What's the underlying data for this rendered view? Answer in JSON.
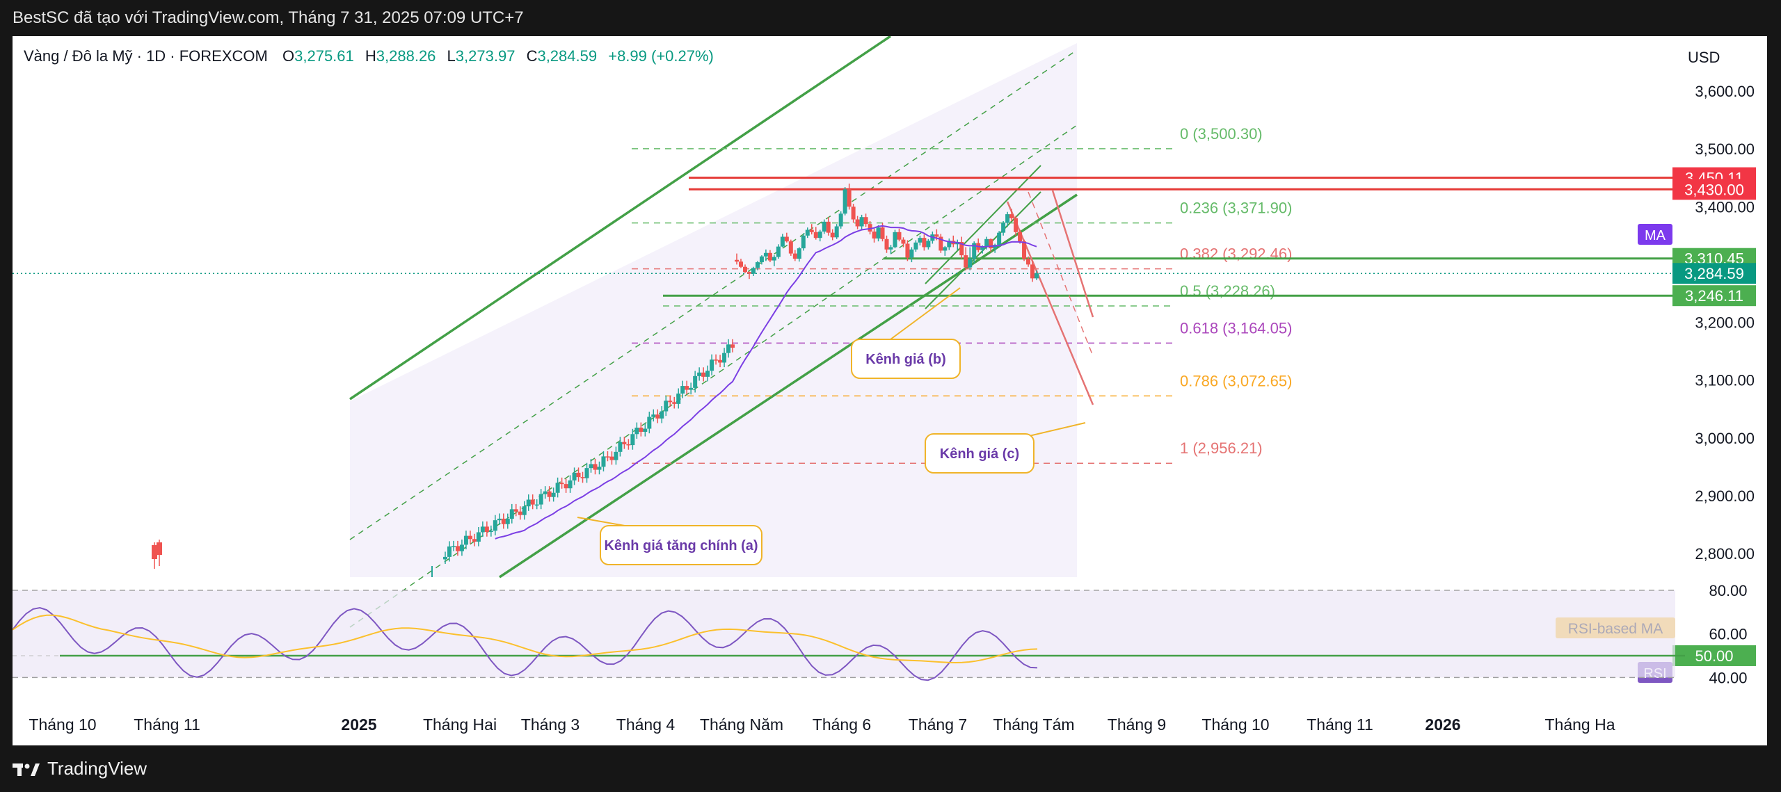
{
  "header": {
    "credit": "BestSC đã tạo với TradingView.com, Tháng 7 31, 2025 07:09 UTC+7"
  },
  "footer": {
    "brand": "TradingView"
  },
  "colors": {
    "up": "#26a69a",
    "down": "#ef5350",
    "ma": "#7b3fe4",
    "rsi": "#7e57c2",
    "rsi_ma": "#fbc02d",
    "channel": "#43a047",
    "resistance": "#e53935"
  },
  "chart_data": {
    "type": "candlestick",
    "symbol_legend": {
      "name": "Vàng / Đô la Mỹ · 1D · FOREXCOM",
      "open_label": "O",
      "open": "3,275.61",
      "high_label": "H",
      "high": "3,288.26",
      "low_label": "L",
      "low": "3,273.97",
      "close_label": "C",
      "close": "3,284.59",
      "change": "+8.99 (+0.27%)"
    },
    "currency": "USD",
    "price_axis": {
      "ticks": [
        "3,600.00",
        "3,500.00",
        "3,400.00",
        "3,300.00",
        "3,200.00",
        "3,100.00",
        "3,000.00",
        "2,900.00",
        "2,800.00"
      ],
      "tick_values": [
        3600,
        3500,
        3400,
        3300,
        3200,
        3100,
        3000,
        2900,
        2800
      ]
    },
    "price_range": [
      2764,
      3695
    ],
    "time_axis": {
      "labels": [
        "Tháng 10",
        "Tháng 11",
        "2025",
        "Tháng Hai",
        "Tháng 3",
        "Tháng 4",
        "Tháng Năm",
        "Tháng 6",
        "Tháng 7",
        "Tháng Tám",
        "Tháng 9",
        "Tháng 10",
        "Tháng 11",
        "2026",
        "Tháng Ha"
      ],
      "bold": [
        "2025",
        "2026"
      ]
    },
    "price_badges": [
      {
        "label": "3,450.11",
        "value": 3450.11,
        "color": "#f23645"
      },
      {
        "label": "3,430.00",
        "value": 3430.0,
        "color": "#f23645"
      },
      {
        "label": "3,310.45",
        "value": 3310.45,
        "color": "#4caf50"
      },
      {
        "label": "3,284.59",
        "value": 3284.59,
        "color": "#089981"
      },
      {
        "label": "3,246.11",
        "value": 3246.11,
        "color": "#4caf50"
      }
    ],
    "ma_badge": "MA",
    "fibonacci": [
      {
        "level": "0 (3,500.30)",
        "value": 3500.3,
        "color": "#66bb6a"
      },
      {
        "level": "0.236 (3,371.90)",
        "value": 3371.9,
        "color": "#66bb6a"
      },
      {
        "level": "0.382 (3,292.46)",
        "value": 3292.46,
        "color": "#e57373"
      },
      {
        "level": "0.5 (3,228.26)",
        "value": 3228.26,
        "color": "#66bb6a"
      },
      {
        "level": "0.618 (3,164.05)",
        "value": 3164.05,
        "color": "#ab47bc"
      },
      {
        "level": "0.786 (3,072.65)",
        "value": 3072.65,
        "color": "#f9a825"
      },
      {
        "level": "1 (2,956.21)",
        "value": 2956.21,
        "color": "#e57373"
      }
    ],
    "annotations": [
      {
        "text": "Kênh giá tăng chính (a)"
      },
      {
        "text": "Kênh giá (b)"
      },
      {
        "text": "Kênh giá (c)"
      }
    ],
    "candles": [
      [
        3308,
        3319,
        3300,
        3305
      ],
      [
        3305,
        3310,
        3294,
        3296
      ],
      [
        3296,
        3300,
        3285,
        3287
      ],
      [
        3287,
        3288,
        3275,
        3284
      ],
      [
        3284,
        3296,
        3280,
        3294
      ],
      [
        3294,
        3306,
        3290,
        3304
      ],
      [
        3304,
        3316,
        3300,
        3314
      ],
      [
        3314,
        3326,
        3306,
        3320
      ],
      [
        3320,
        3325,
        3304,
        3307
      ],
      [
        3307,
        3316,
        3297,
        3313
      ],
      [
        3313,
        3335,
        3310,
        3331
      ],
      [
        3331,
        3353,
        3330,
        3348
      ],
      [
        3348,
        3355,
        3338,
        3340
      ],
      [
        3340,
        3343,
        3315,
        3319
      ],
      [
        3319,
        3325,
        3306,
        3310
      ],
      [
        3310,
        3330,
        3305,
        3328
      ],
      [
        3328,
        3354,
        3324,
        3350
      ],
      [
        3350,
        3364,
        3346,
        3360
      ],
      [
        3360,
        3370,
        3352,
        3356
      ],
      [
        3356,
        3365,
        3343,
        3346
      ],
      [
        3346,
        3360,
        3340,
        3357
      ],
      [
        3357,
        3378,
        3353,
        3374
      ],
      [
        3374,
        3382,
        3350,
        3355
      ],
      [
        3355,
        3361,
        3342,
        3347
      ],
      [
        3347,
        3370,
        3344,
        3366
      ],
      [
        3366,
        3392,
        3362,
        3388
      ],
      [
        3388,
        3434,
        3385,
        3430
      ],
      [
        3430,
        3440,
        3395,
        3400
      ],
      [
        3400,
        3405,
        3372,
        3378
      ],
      [
        3378,
        3384,
        3361,
        3366
      ],
      [
        3366,
        3386,
        3360,
        3382
      ],
      [
        3382,
        3388,
        3365,
        3370
      ],
      [
        3370,
        3375,
        3352,
        3357
      ],
      [
        3357,
        3362,
        3338,
        3345
      ],
      [
        3345,
        3368,
        3340,
        3364
      ],
      [
        3364,
        3372,
        3340,
        3344
      ],
      [
        3344,
        3350,
        3320,
        3326
      ],
      [
        3326,
        3334,
        3318,
        3330
      ],
      [
        3330,
        3360,
        3328,
        3356
      ],
      [
        3356,
        3362,
        3340,
        3343
      ],
      [
        3343,
        3347,
        3330,
        3336
      ],
      [
        3336,
        3342,
        3306,
        3312
      ],
      [
        3312,
        3330,
        3304,
        3326
      ],
      [
        3326,
        3342,
        3322,
        3338
      ],
      [
        3338,
        3350,
        3333,
        3346
      ],
      [
        3346,
        3352,
        3324,
        3330
      ],
      [
        3330,
        3344,
        3326,
        3341
      ],
      [
        3341,
        3357,
        3336,
        3352
      ],
      [
        3352,
        3361,
        3342,
        3348
      ],
      [
        3348,
        3353,
        3320,
        3324
      ],
      [
        3324,
        3332,
        3315,
        3330
      ],
      [
        3330,
        3345,
        3325,
        3341
      ],
      [
        3341,
        3350,
        3330,
        3335
      ],
      [
        3335,
        3343,
        3325,
        3339
      ],
      [
        3339,
        3348,
        3310,
        3316
      ],
      [
        3316,
        3330,
        3290,
        3295
      ],
      [
        3295,
        3330,
        3290,
        3310
      ],
      [
        3310,
        3340,
        3302,
        3337
      ],
      [
        3337,
        3345,
        3321,
        3325
      ],
      [
        3325,
        3333,
        3319,
        3330
      ],
      [
        3330,
        3348,
        3326,
        3344
      ],
      [
        3344,
        3345,
        3322,
        3328
      ],
      [
        3328,
        3336,
        3320,
        3334
      ],
      [
        3334,
        3358,
        3330,
        3355
      ],
      [
        3355,
        3375,
        3350,
        3372
      ],
      [
        3372,
        3391,
        3365,
        3387
      ],
      [
        3387,
        3396,
        3375,
        3380
      ],
      [
        3380,
        3384,
        3350,
        3356
      ],
      [
        3356,
        3360,
        3336,
        3340
      ],
      [
        3340,
        3343,
        3306,
        3310
      ],
      [
        3310,
        3314,
        3296,
        3300
      ],
      [
        3300,
        3306,
        3270,
        3276
      ],
      [
        3276,
        3290,
        3273,
        3285
      ]
    ],
    "rsi": {
      "labels": [
        "80.00",
        "60.00",
        "50.00",
        "40.00"
      ],
      "values": [
        80,
        60,
        50,
        40
      ],
      "badge": "50.00",
      "legend_ma": "RSI-based MA",
      "legend_rsi": "RSI",
      "range": [
        28,
        86
      ]
    }
  }
}
